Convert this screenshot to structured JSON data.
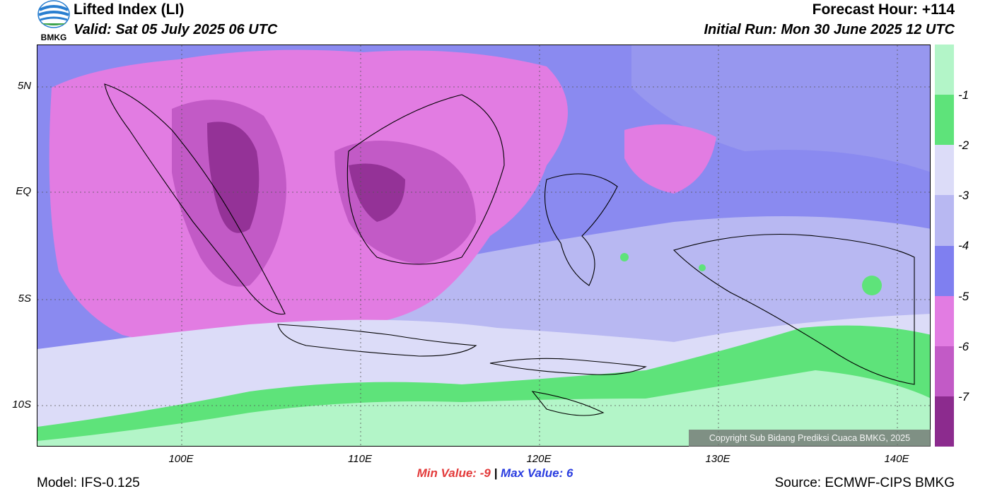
{
  "header": {
    "title": "Lifted Index (LI)",
    "valid": "Valid: Sat 05 July 2025 06 UTC",
    "forecast_hour": "Forecast Hour: +114",
    "initial_run": "Initial Run: Mon 30 June 2025 12 UTC"
  },
  "logo": {
    "text": "BMKG"
  },
  "map": {
    "lat_ticks": [
      "5N",
      "EQ",
      "5S",
      "10S"
    ],
    "lon_ticks": [
      "100E",
      "110E",
      "120E",
      "130E",
      "140E"
    ],
    "copyright": "Copyright Sub Bidang Prediksi Cuaca BMKG, 2025"
  },
  "legend": {
    "labels": [
      "-1",
      "-2",
      "-3",
      "-4",
      "-5",
      "-6",
      "-7"
    ],
    "colors": [
      "#b3f5c8",
      "#5ee37a",
      "#dcdcf8",
      "#b8b8f2",
      "#7f7ff0",
      "#e27ce2",
      "#c25ac6",
      "#8c2b8e"
    ]
  },
  "stats": {
    "min_label": "Min Value:",
    "min_value": "-9",
    "separator": "|",
    "max_label": "Max Value:",
    "max_value": "6"
  },
  "footer": {
    "model": "Model: IFS-0.125",
    "source": "Source: ECMWF-CIPS BMKG"
  }
}
